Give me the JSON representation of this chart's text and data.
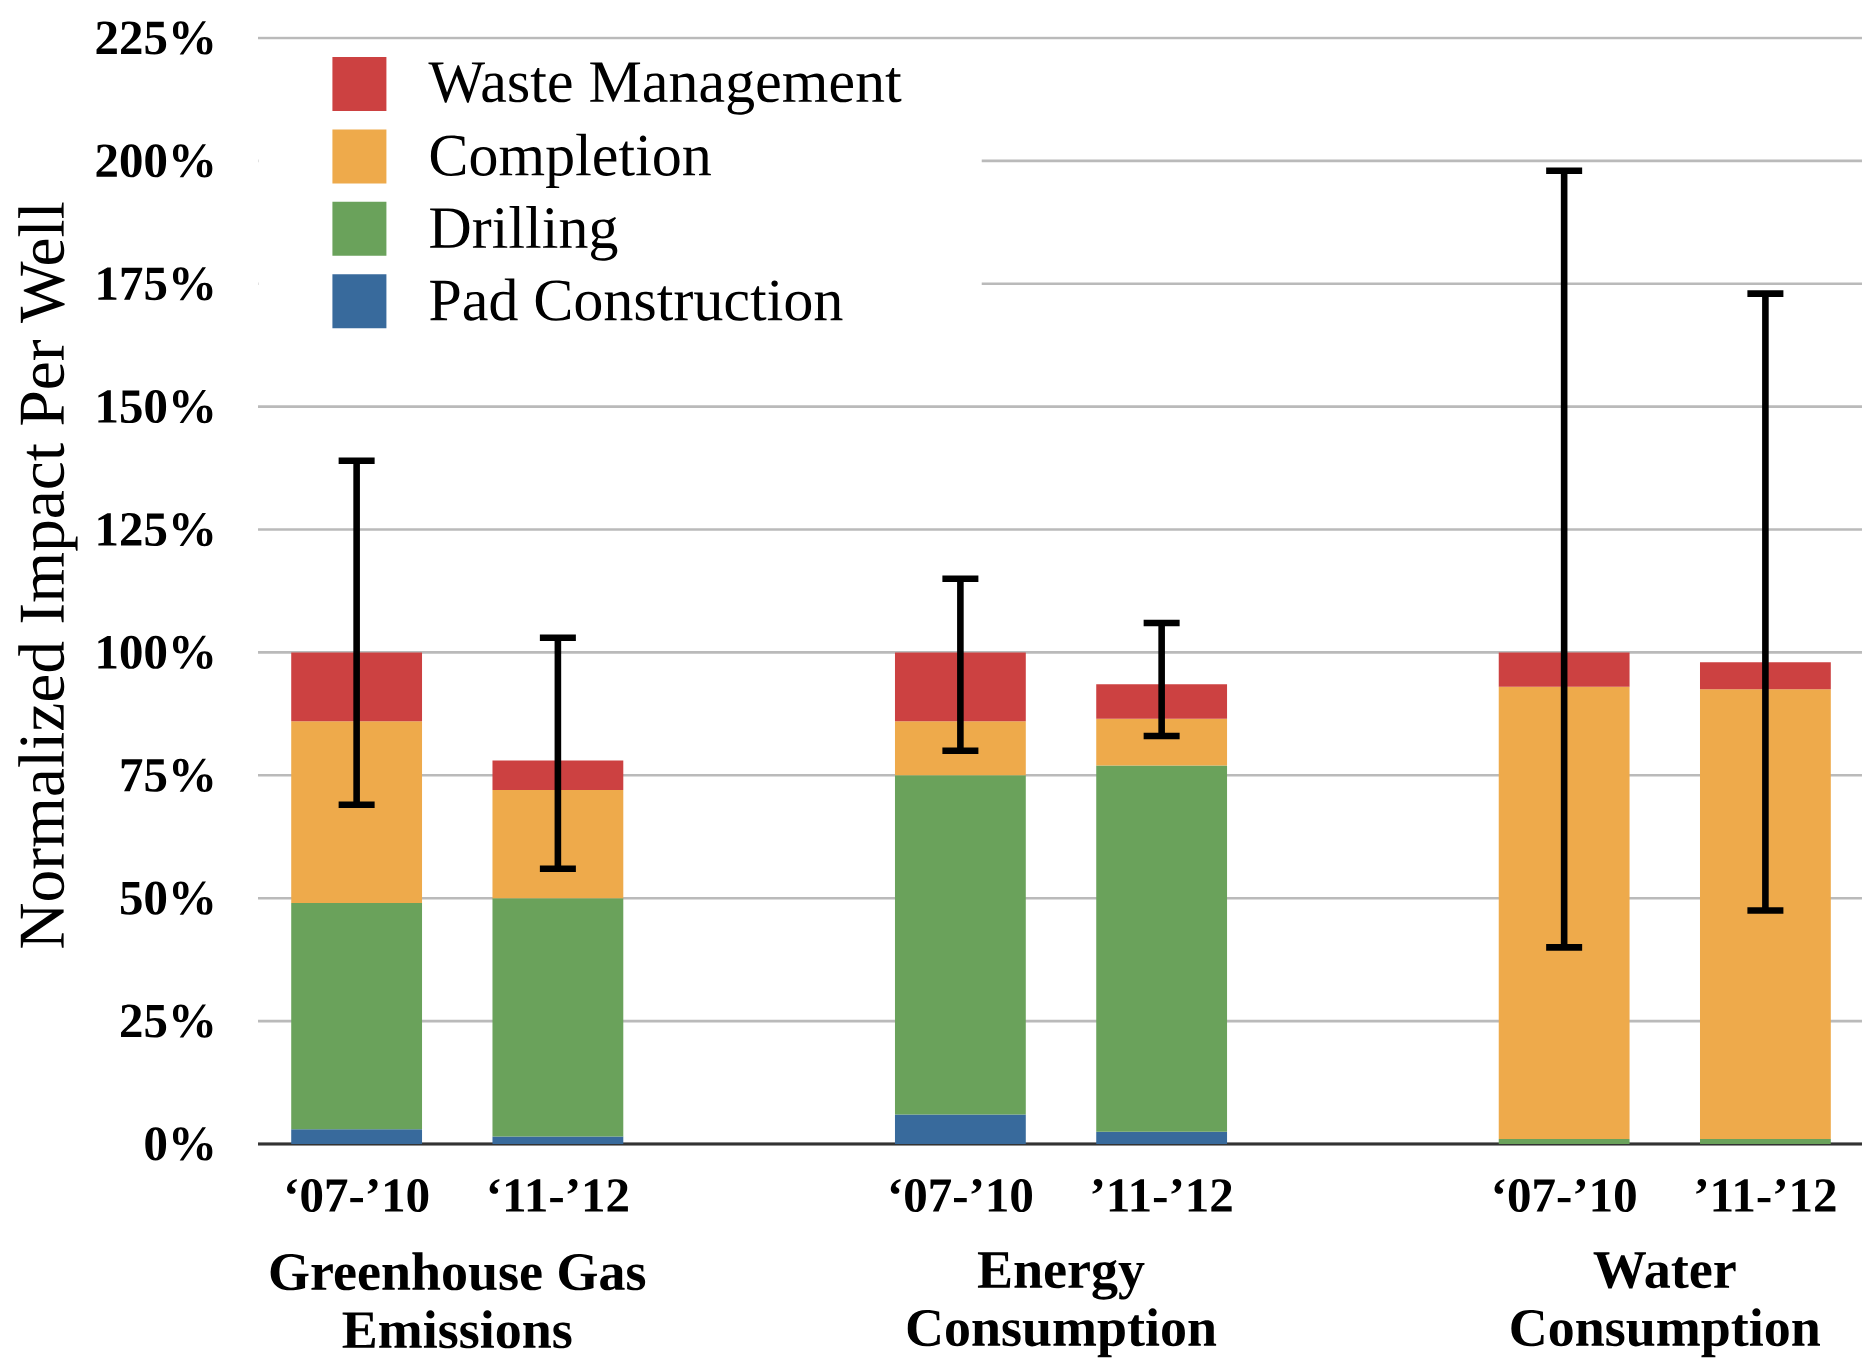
{
  "chart_data": {
    "type": "bar",
    "stacked": true,
    "ylabel": "Normalized Impact Per Well",
    "categories": [
      "‘07-’10",
      "‘11-’12",
      null,
      "‘07-’10",
      "’11-’12",
      null,
      "‘07-’10",
      "’11-’12"
    ],
    "series": [
      {
        "name": "Pad Construction",
        "color": "#386a9c",
        "values": [
          3,
          1.5,
          null,
          6,
          2.5,
          null,
          null,
          null
        ]
      },
      {
        "name": "Drilling",
        "color": "#6aa25b",
        "values": [
          46,
          48.5,
          null,
          69,
          74.5,
          null,
          1,
          1
        ]
      },
      {
        "name": "Completion",
        "color": "#eeaa4b",
        "values": [
          37,
          22,
          null,
          11,
          9.5,
          null,
          92,
          91.5
        ]
      },
      {
        "name": "Waste Management",
        "color": "#cc4141",
        "values": [
          14,
          6,
          null,
          14,
          7,
          null,
          7,
          5.5
        ],
        "errors": [
          [
            69,
            139
          ],
          [
            56,
            103
          ],
          null,
          [
            80,
            115
          ],
          [
            83,
            106
          ],
          null,
          [
            40,
            198
          ],
          [
            47.5,
            173
          ]
        ]
      }
    ],
    "ylim": [
      0,
      225
    ],
    "yticks": [
      {
        "value": 0,
        "label": "0%"
      },
      {
        "value": 25,
        "label": "25%"
      },
      {
        "value": 50,
        "label": "50%"
      },
      {
        "value": 75,
        "label": "75%"
      },
      {
        "value": 100,
        "label": "100%"
      },
      {
        "value": 125,
        "label": "125%"
      },
      {
        "value": 150,
        "label": "150%"
      },
      {
        "value": 175,
        "label": "175%"
      },
      {
        "value": 200,
        "label": "200%"
      },
      {
        "value": 225,
        "label": "225%"
      }
    ],
    "grid": "y",
    "legend": "top left",
    "annotations": [
      "Greenhouse Gas Emissions",
      "Energy Consumption",
      "Water Consumption"
    ]
  }
}
